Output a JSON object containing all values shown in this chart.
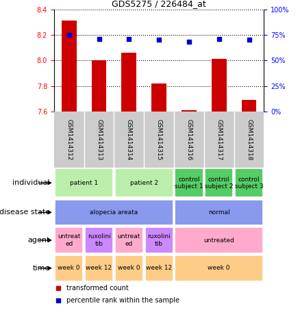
{
  "title": "GDS5275 / 226484_at",
  "samples": [
    "GSM1414312",
    "GSM1414313",
    "GSM1414314",
    "GSM1414315",
    "GSM1414316",
    "GSM1414317",
    "GSM1414318"
  ],
  "bar_values": [
    8.31,
    8.0,
    8.06,
    7.82,
    7.61,
    8.01,
    7.69
  ],
  "dot_values": [
    75,
    71,
    71,
    70,
    68,
    71,
    70
  ],
  "ylim_left": [
    7.6,
    8.4
  ],
  "ylim_right": [
    0,
    100
  ],
  "yticks_left": [
    7.6,
    7.8,
    8.0,
    8.2,
    8.4
  ],
  "yticks_right": [
    0,
    25,
    50,
    75,
    100
  ],
  "bar_color": "#cc0000",
  "dot_color": "#0000cc",
  "individual_data": [
    {
      "label": "patient 1",
      "span": [
        0,
        1
      ],
      "color": "#bbeeaa"
    },
    {
      "label": "patient 2",
      "span": [
        2,
        3
      ],
      "color": "#bbeeaa"
    },
    {
      "label": "control\nsubject 1",
      "span": [
        4,
        4
      ],
      "color": "#55cc66"
    },
    {
      "label": "control\nsubject 2",
      "span": [
        5,
        5
      ],
      "color": "#55cc66"
    },
    {
      "label": "control\nsubject 3",
      "span": [
        6,
        6
      ],
      "color": "#55cc66"
    }
  ],
  "disease_data": [
    {
      "label": "alopecia areata",
      "span": [
        0,
        3
      ],
      "color": "#8899ee"
    },
    {
      "label": "normal",
      "span": [
        4,
        6
      ],
      "color": "#8899ee"
    }
  ],
  "agent_data": [
    {
      "label": "untreat\ned",
      "span": [
        0,
        0
      ],
      "color": "#ffaacc"
    },
    {
      "label": "ruxolini\ntib",
      "span": [
        1,
        1
      ],
      "color": "#cc88ff"
    },
    {
      "label": "untreat\ned",
      "span": [
        2,
        2
      ],
      "color": "#ffaacc"
    },
    {
      "label": "ruxolini\ntib",
      "span": [
        3,
        3
      ],
      "color": "#cc88ff"
    },
    {
      "label": "untreated",
      "span": [
        4,
        6
      ],
      "color": "#ffaacc"
    }
  ],
  "time_data": [
    {
      "label": "week 0",
      "span": [
        0,
        0
      ],
      "color": "#ffcc88"
    },
    {
      "label": "week 12",
      "span": [
        1,
        1
      ],
      "color": "#ffcc88"
    },
    {
      "label": "week 0",
      "span": [
        2,
        2
      ],
      "color": "#ffcc88"
    },
    {
      "label": "week 12",
      "span": [
        3,
        3
      ],
      "color": "#ffcc88"
    },
    {
      "label": "week 0",
      "span": [
        4,
        6
      ],
      "color": "#ffcc88"
    }
  ],
  "legend_items": [
    {
      "label": "transformed count",
      "color": "#cc0000"
    },
    {
      "label": "percentile rank within the sample",
      "color": "#0000cc"
    }
  ],
  "sample_bg_color": "#cccccc",
  "row_labels": [
    "individual",
    "disease state",
    "agent",
    "time"
  ],
  "row_label_fontsize": 8,
  "sample_fontsize": 6.5,
  "cell_fontsize": 6.5
}
